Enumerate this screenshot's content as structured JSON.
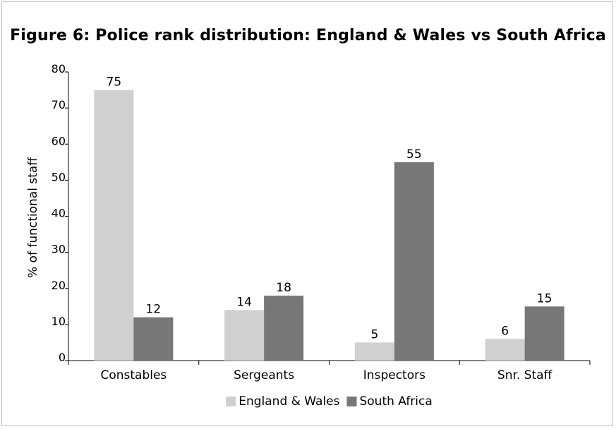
{
  "chart_data": {
    "type": "bar",
    "title": "Figure 6: Police rank distribution: England & Wales vs South Africa",
    "ylabel": "% of functional staff",
    "xlabel": "",
    "categories": [
      "Constables",
      "Sergeants",
      "Inspectors",
      "Snr. Staff"
    ],
    "series": [
      {
        "name": "England & Wales",
        "values": [
          75,
          14,
          5,
          6
        ],
        "color": "#d0d0d0"
      },
      {
        "name": "South Africa",
        "values": [
          12,
          18,
          55,
          15
        ],
        "color": "#777777"
      }
    ],
    "ylim": [
      0,
      80
    ],
    "yticks": [
      0,
      10,
      20,
      30,
      40,
      50,
      60,
      70,
      80
    ],
    "grid": false,
    "legend_position": "bottom"
  }
}
